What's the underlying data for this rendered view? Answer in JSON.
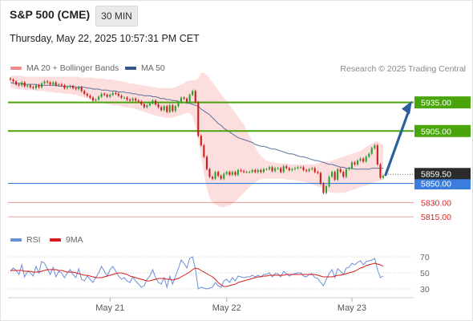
{
  "header": {
    "instrument": "S&P 500 (CME)",
    "timeframe": "30 MIN",
    "timestamp": "Thursday, May 22, 2025 10:57:31 PM CET"
  },
  "legend": {
    "ma20_bb": "MA 20 + Bollinger Bands",
    "ma50": "MA 50",
    "credit": "Research © 2025 Trading Central",
    "rsi": "RSI",
    "rsi_ma": "9MA"
  },
  "colors": {
    "bullish": "#2e9e2e",
    "bearish": "#c81e1e",
    "ma50": "#33558a",
    "bollinger_fill": "#fbd8d8",
    "target_green": "#4aa50d",
    "pivot_blue": "#3b7ddd",
    "support_red": "#e05050",
    "arrow": "#2d5f9e",
    "rsi_line": "#6a8fd8",
    "rsi_ma_line": "#d81b1b"
  },
  "chart_data": [
    {
      "type": "candlestick",
      "ylim": [
        5805,
        5965
      ],
      "x_ticks": [
        "May 21",
        "May 22",
        "May 23"
      ],
      "current_price": "5859.50",
      "levels": [
        {
          "value": 5935.0,
          "label": "5935.00",
          "kind": "target"
        },
        {
          "value": 5905.0,
          "label": "5905.00",
          "kind": "target"
        },
        {
          "value": 5850.0,
          "label": "5850.00",
          "kind": "pivot"
        },
        {
          "value": 5830.0,
          "label": "5830.00",
          "kind": "support"
        },
        {
          "value": 5815.0,
          "label": "5815.00",
          "kind": "support"
        }
      ],
      "forecast_arrow": {
        "from": 5859,
        "to": 5935,
        "direction": "up"
      },
      "close": [
        5959,
        5957,
        5954,
        5953,
        5956,
        5952,
        5953,
        5951,
        5950,
        5953,
        5951,
        5955,
        5957,
        5956,
        5954,
        5956,
        5953,
        5954,
        5953,
        5950,
        5951,
        5952,
        5950,
        5949,
        5951,
        5947,
        5944,
        5942,
        5940,
        5937,
        5938,
        5941,
        5944,
        5943,
        5941,
        5943,
        5945,
        5944,
        5942,
        5940,
        5940,
        5938,
        5937,
        5939,
        5937,
        5936,
        5933,
        5930,
        5932,
        5934,
        5937,
        5933,
        5930,
        5927,
        5931,
        5925,
        5932,
        5926,
        5931,
        5935,
        5940,
        5939,
        5936,
        5943,
        5947,
        5935,
        5900,
        5890,
        5878,
        5865,
        5857,
        5855,
        5862,
        5858,
        5855,
        5860,
        5862,
        5859,
        5862,
        5859,
        5864,
        5863,
        5862,
        5862,
        5862,
        5864,
        5862,
        5864,
        5862,
        5865,
        5865,
        5867,
        5863,
        5866,
        5866,
        5862,
        5868,
        5866,
        5864,
        5865,
        5866,
        5867,
        5867,
        5864,
        5863,
        5865,
        5866,
        5862,
        5861,
        5850,
        5840,
        5847,
        5857,
        5862,
        5854,
        5865,
        5862,
        5857,
        5865,
        5866,
        5872,
        5870,
        5874,
        5876,
        5873,
        5878,
        5881,
        5887,
        5890,
        5870,
        5856,
        5858
      ],
      "ma50": [
        5956,
        5955,
        5955,
        5955,
        5955,
        5954,
        5954,
        5954,
        5954,
        5954,
        5953,
        5953,
        5953,
        5953,
        5953,
        5953,
        5953,
        5952,
        5952,
        5952,
        5952,
        5952,
        5952,
        5951,
        5951,
        5951,
        5951,
        5950,
        5950,
        5949,
        5949,
        5949,
        5948,
        5948,
        5948,
        5947,
        5947,
        5947,
        5946,
        5946,
        5946,
        5945,
        5945,
        5944,
        5944,
        5943,
        5943,
        5942,
        5942,
        5942,
        5941,
        5941,
        5940,
        5939,
        5939,
        5938,
        5938,
        5937,
        5937,
        5936,
        5935,
        5935,
        5934,
        5934,
        5933,
        5932,
        5931,
        5928,
        5926,
        5924,
        5922,
        5919,
        5916,
        5913,
        5911,
        5908,
        5906,
        5904,
        5902,
        5900,
        5898,
        5897,
        5896,
        5895,
        5894,
        5893,
        5891,
        5890,
        5889,
        5889,
        5888,
        5887,
        5886,
        5886,
        5885,
        5884,
        5883,
        5882,
        5881,
        5881,
        5880,
        5879,
        5878,
        5878,
        5877,
        5876,
        5875,
        5874,
        5874,
        5873,
        5872,
        5871,
        5870,
        5870,
        5869,
        5868,
        5867,
        5867,
        5866,
        5866,
        5866,
        5865,
        5865,
        5865,
        5865,
        5865,
        5865,
        5866,
        5866,
        5866,
        5866,
        5866
      ],
      "bollinger_upper": [
        5963,
        5963,
        5963,
        5963,
        5963,
        5962,
        5962,
        5962,
        5962,
        5962,
        5962,
        5962,
        5962,
        5962,
        5962,
        5962,
        5962,
        5962,
        5962,
        5962,
        5962,
        5962,
        5962,
        5962,
        5962,
        5961,
        5961,
        5961,
        5961,
        5961,
        5960,
        5960,
        5960,
        5960,
        5959,
        5959,
        5959,
        5958,
        5958,
        5957,
        5957,
        5956,
        5955,
        5955,
        5954,
        5954,
        5953,
        5953,
        5952,
        5952,
        5951,
        5951,
        5950,
        5950,
        5950,
        5950,
        5950,
        5950,
        5951,
        5952,
        5954,
        5955,
        5957,
        5958,
        5958,
        5958,
        5960,
        5966,
        5966,
        5964,
        5960,
        5956,
        5952,
        5948,
        5944,
        5940,
        5936,
        5932,
        5928,
        5924,
        5920,
        5916,
        5912,
        5906,
        5900,
        5894,
        5888,
        5883,
        5879,
        5876,
        5874,
        5873,
        5872,
        5872,
        5871,
        5871,
        5871,
        5871,
        5870,
        5870,
        5870,
        5870,
        5870,
        5870,
        5870,
        5870,
        5870,
        5870,
        5871,
        5872,
        5873,
        5873,
        5873,
        5874,
        5875,
        5876,
        5877,
        5878,
        5879,
        5880,
        5881,
        5882,
        5883,
        5884,
        5886,
        5888,
        5890,
        5892,
        5894,
        5894,
        5892,
        5890
      ],
      "bollinger_lower": [
        5950,
        5950,
        5949,
        5949,
        5949,
        5948,
        5948,
        5948,
        5948,
        5947,
        5947,
        5947,
        5947,
        5946,
        5946,
        5946,
        5945,
        5945,
        5945,
        5944,
        5944,
        5944,
        5943,
        5943,
        5942,
        5941,
        5940,
        5939,
        5938,
        5937,
        5936,
        5935,
        5934,
        5934,
        5933,
        5933,
        5932,
        5932,
        5932,
        5931,
        5930,
        5930,
        5929,
        5929,
        5928,
        5927,
        5926,
        5925,
        5924,
        5923,
        5922,
        5921,
        5920,
        5920,
        5919,
        5919,
        5919,
        5919,
        5920,
        5921,
        5922,
        5923,
        5924,
        5924,
        5920,
        5910,
        5895,
        5880,
        5860,
        5845,
        5835,
        5830,
        5828,
        5826,
        5825,
        5825,
        5826,
        5827,
        5829,
        5831,
        5834,
        5837,
        5840,
        5843,
        5846,
        5849,
        5851,
        5853,
        5854,
        5855,
        5855,
        5855,
        5855,
        5855,
        5855,
        5855,
        5855,
        5854,
        5854,
        5854,
        5853,
        5853,
        5852,
        5852,
        5851,
        5850,
        5849,
        5848,
        5847,
        5846,
        5844,
        5842,
        5841,
        5840,
        5840,
        5840,
        5840,
        5840,
        5841,
        5842,
        5843,
        5844,
        5845,
        5846,
        5847,
        5848,
        5849,
        5850,
        5851,
        5852,
        5853,
        5854
      ]
    },
    {
      "type": "line",
      "series": [
        {
          "name": "RSI",
          "values": [
            52,
            56,
            53,
            48,
            60,
            45,
            52,
            50,
            46,
            58,
            50,
            64,
            62,
            55,
            48,
            57,
            45,
            52,
            50,
            44,
            50,
            54,
            48,
            44,
            55,
            42,
            40,
            46,
            42,
            38,
            44,
            50,
            58,
            52,
            46,
            54,
            58,
            52,
            46,
            42,
            44,
            40,
            38,
            45,
            40,
            36,
            32,
            34,
            42,
            46,
            54,
            44,
            38,
            36,
            44,
            32,
            46,
            36,
            46,
            55,
            66,
            62,
            56,
            68,
            70,
            55,
            30,
            32,
            31,
            30,
            31,
            32,
            38,
            34,
            32,
            40,
            42,
            38,
            44,
            40,
            46,
            45,
            44,
            45,
            45,
            47,
            45,
            47,
            45,
            48,
            48,
            50,
            45,
            49,
            49,
            45,
            52,
            49,
            46,
            48,
            49,
            50,
            50,
            46,
            45,
            48,
            49,
            44,
            43,
            38,
            34,
            42,
            49,
            54,
            44,
            55,
            52,
            48,
            56,
            57,
            62,
            60,
            63,
            65,
            60,
            64,
            65,
            66,
            68,
            54,
            44,
            46
          ]
        },
        {
          "name": "9MA",
          "values": [
            53,
            53,
            53,
            53,
            53,
            52,
            52,
            52,
            51,
            51,
            51,
            52,
            53,
            54,
            54,
            54,
            54,
            53,
            53,
            52,
            51,
            51,
            51,
            50,
            49,
            48,
            47,
            47,
            46,
            45,
            44,
            44,
            44,
            45,
            46,
            47,
            48,
            49,
            50,
            50,
            49,
            48,
            46,
            45,
            44,
            43,
            42,
            41,
            40,
            40,
            41,
            42,
            43,
            43,
            43,
            42,
            42,
            41,
            42,
            43,
            45,
            47,
            49,
            51,
            54,
            56,
            55,
            53,
            51,
            49,
            47,
            45,
            42,
            38,
            35,
            33,
            33,
            34,
            35,
            36,
            38,
            39,
            40,
            41,
            42,
            43,
            44,
            45,
            45,
            46,
            46,
            47,
            47,
            47,
            47,
            47,
            47,
            48,
            48,
            48,
            48,
            48,
            48,
            48,
            48,
            48,
            48,
            48,
            47,
            46,
            45,
            45,
            45,
            45,
            46,
            47,
            47,
            48,
            49,
            50,
            51,
            52,
            54,
            56,
            57,
            59,
            60,
            61,
            62,
            61,
            60,
            58
          ]
        }
      ],
      "ylim": [
        20,
        80
      ],
      "y_ticks": [
        "70",
        "50",
        "30"
      ],
      "y_tick_values": [
        70,
        50,
        30
      ]
    }
  ]
}
